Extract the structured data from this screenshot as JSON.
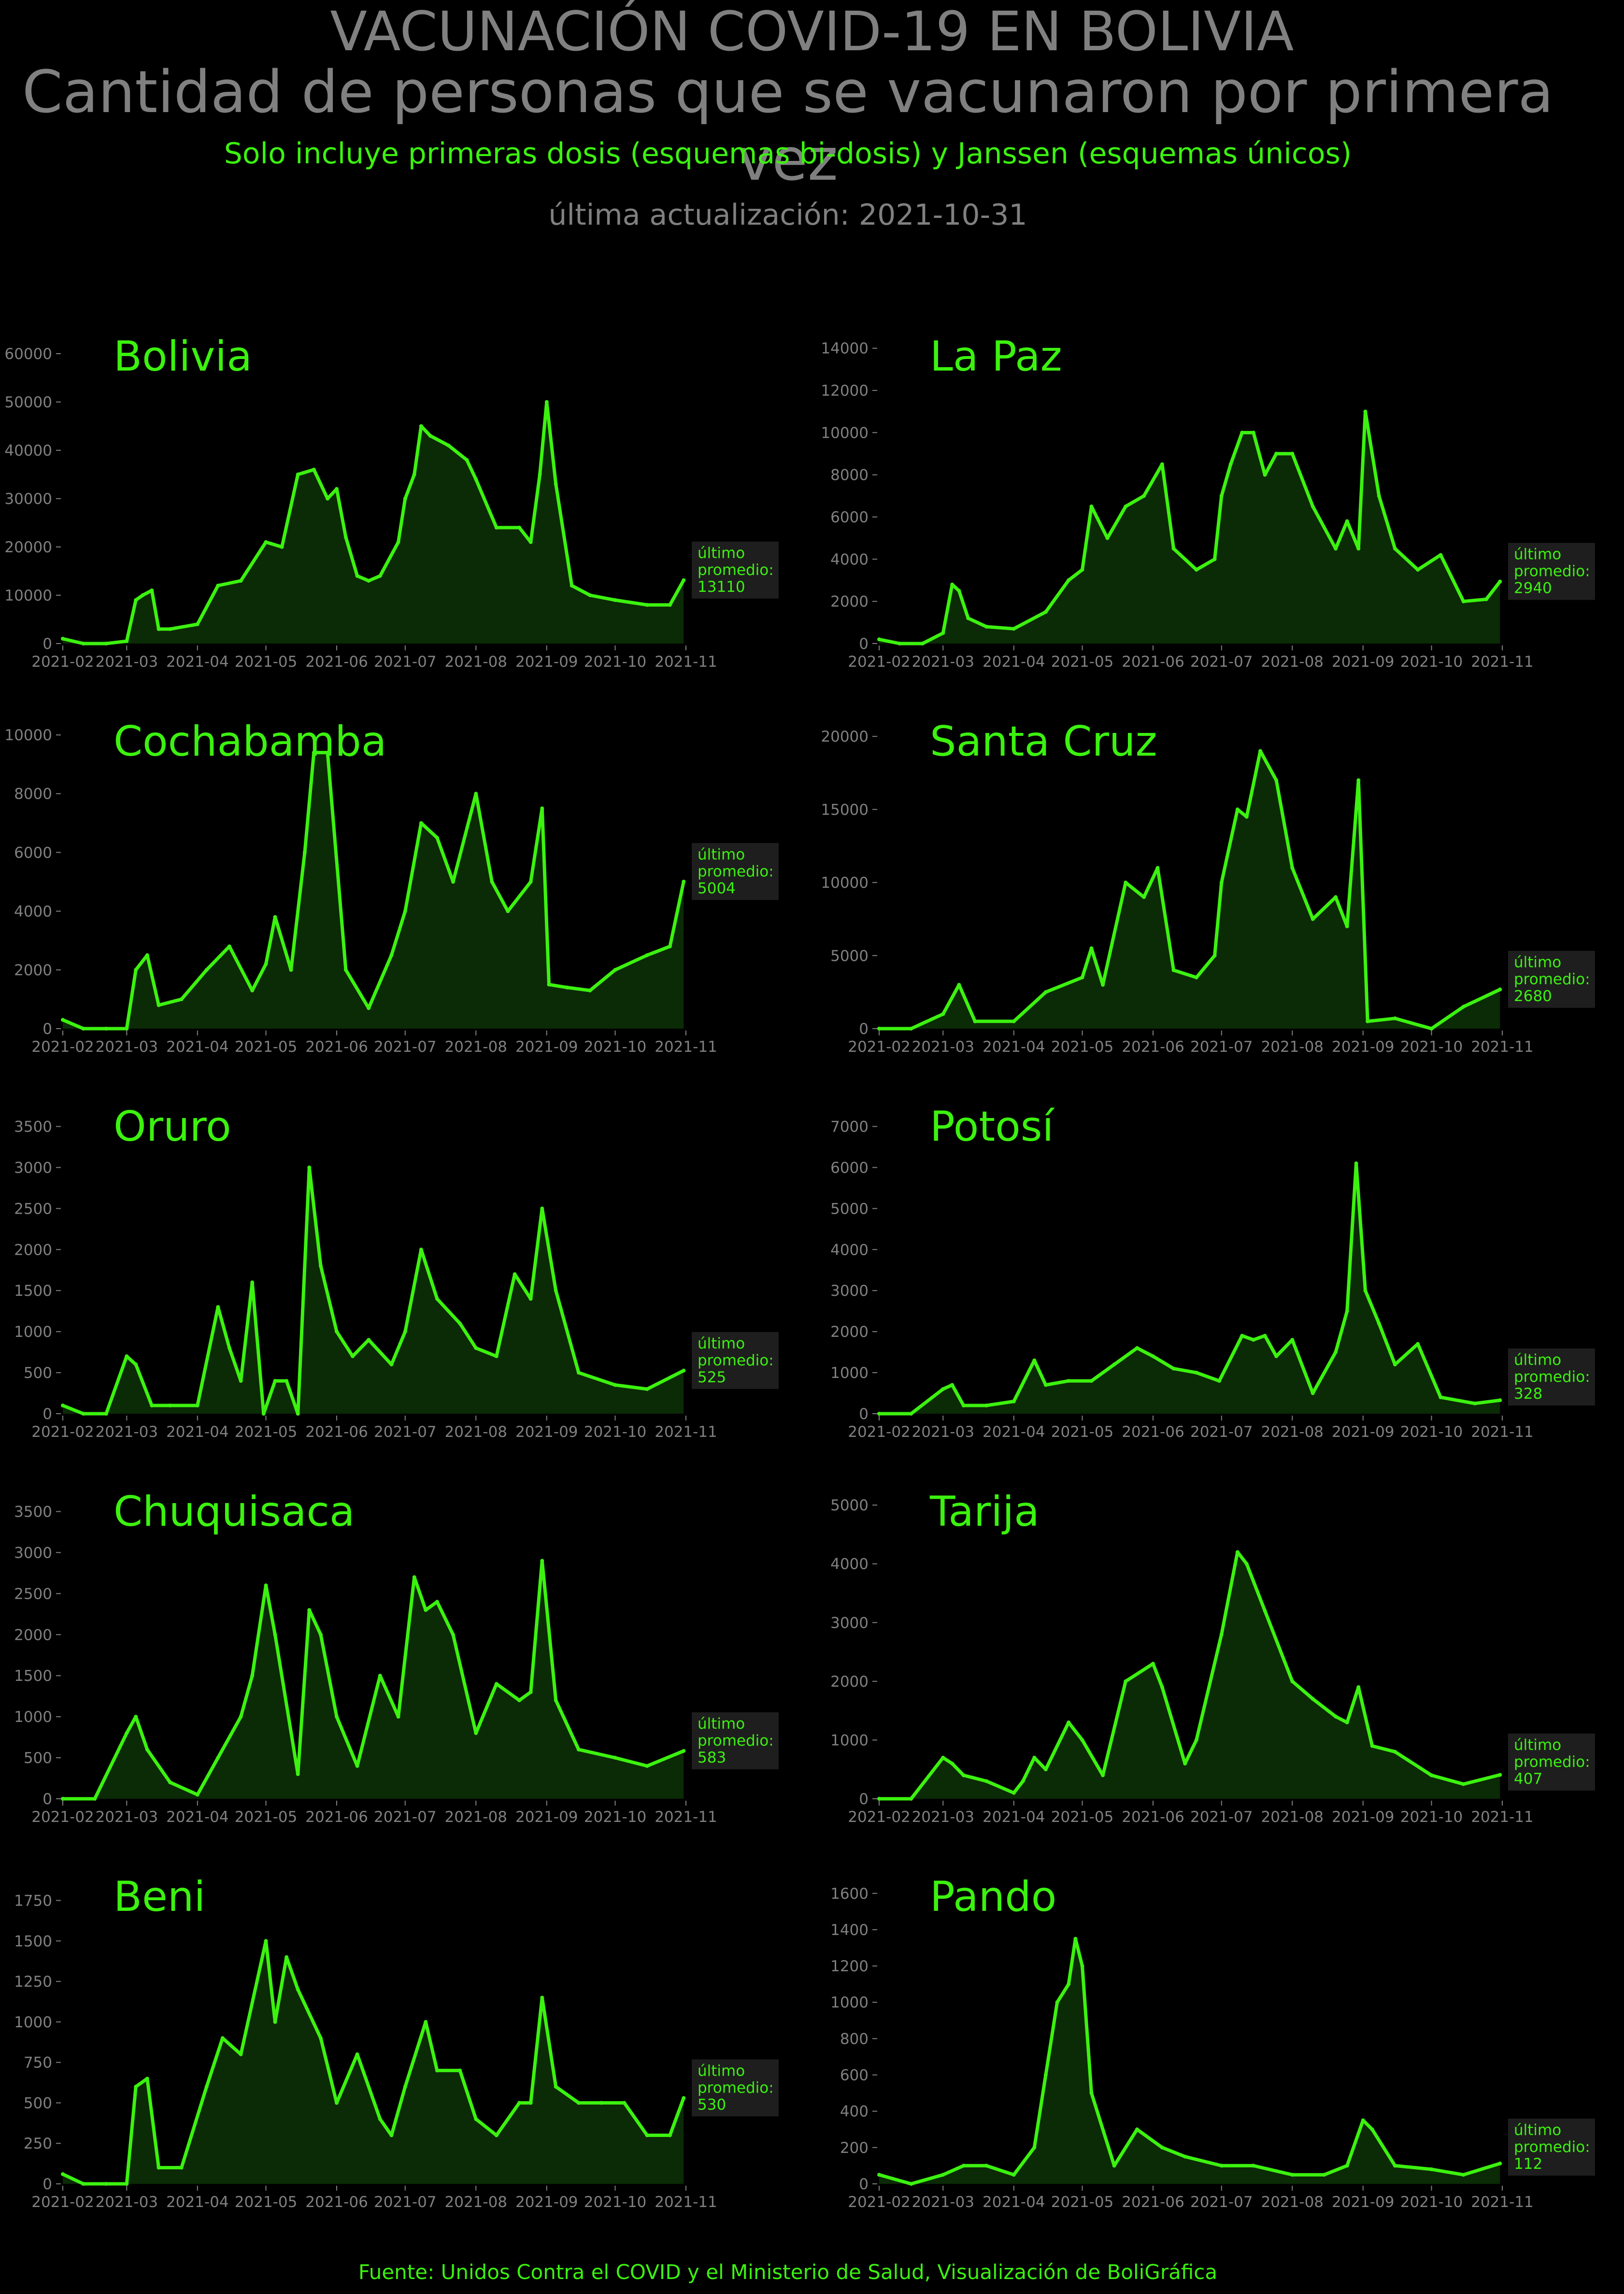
{
  "title_line1": "VACUNACIÓN COVID-19 EN BOLIVIA",
  "title_line2": "Cantidad de personas que se vacunaron por primera vez",
  "subtitle": "Solo incluye primeras dosis (esquemas bi-dosis) y Janssen (esquemas únicos)",
  "updated": "última actualización: 2021-10-31",
  "footer": "Fuente: Unidos Contra el COVID y el Ministerio de Salud, Visualización de BoliGráfica",
  "colors": {
    "background": "#000000",
    "line": "#3cf20f",
    "fill": "#0b2a06",
    "text_gray": "#808080",
    "label_bg": "#1e1e1e"
  },
  "chart_data": [
    {
      "type": "area",
      "title": "Bolivia",
      "x_ticks": [
        "2021-02",
        "2021-03",
        "2021-04",
        "2021-05",
        "2021-06",
        "2021-07",
        "2021-08",
        "2021-09",
        "2021-10",
        "2021-11"
      ],
      "y_ticks": [
        0,
        10000,
        20000,
        30000,
        40000,
        50000,
        60000
      ],
      "ylim": [
        0,
        62000
      ],
      "x": [
        "2021-02-01",
        "2021-02-10",
        "2021-02-20",
        "2021-03-01",
        "2021-03-05",
        "2021-03-08",
        "2021-03-12",
        "2021-03-15",
        "2021-03-20",
        "2021-04-01",
        "2021-04-10",
        "2021-04-20",
        "2021-05-01",
        "2021-05-08",
        "2021-05-15",
        "2021-05-22",
        "2021-05-28",
        "2021-06-01",
        "2021-06-05",
        "2021-06-10",
        "2021-06-15",
        "2021-06-20",
        "2021-06-28",
        "2021-07-01",
        "2021-07-05",
        "2021-07-08",
        "2021-07-12",
        "2021-07-20",
        "2021-07-28",
        "2021-08-01",
        "2021-08-10",
        "2021-08-20",
        "2021-08-25",
        "2021-08-29",
        "2021-09-01",
        "2021-09-05",
        "2021-09-12",
        "2021-09-20",
        "2021-10-01",
        "2021-10-15",
        "2021-10-25",
        "2021-10-31"
      ],
      "values": [
        1000,
        0,
        0,
        500,
        9000,
        10000,
        11000,
        3000,
        3000,
        4000,
        12000,
        13000,
        21000,
        20000,
        35000,
        36000,
        30000,
        32000,
        22000,
        14000,
        13000,
        14000,
        21000,
        30000,
        35000,
        45000,
        43000,
        41000,
        38000,
        34000,
        24000,
        24000,
        21000,
        35000,
        50000,
        33000,
        12000,
        10000,
        9000,
        8000,
        8000,
        13110
      ],
      "latest_label": "último\npromedio:\n13110"
    },
    {
      "type": "area",
      "title": "La Paz",
      "x_ticks": [
        "2021-02",
        "2021-03",
        "2021-04",
        "2021-05",
        "2021-06",
        "2021-07",
        "2021-08",
        "2021-09",
        "2021-10",
        "2021-11"
      ],
      "y_ticks": [
        0,
        2000,
        4000,
        6000,
        8000,
        10000,
        12000,
        14000
      ],
      "ylim": [
        0,
        14200
      ],
      "x": [
        "2021-02-01",
        "2021-02-10",
        "2021-02-20",
        "2021-03-01",
        "2021-03-05",
        "2021-03-08",
        "2021-03-12",
        "2021-03-20",
        "2021-04-01",
        "2021-04-15",
        "2021-04-25",
        "2021-05-01",
        "2021-05-05",
        "2021-05-12",
        "2021-05-20",
        "2021-05-28",
        "2021-06-05",
        "2021-06-10",
        "2021-06-20",
        "2021-06-28",
        "2021-07-01",
        "2021-07-05",
        "2021-07-10",
        "2021-07-15",
        "2021-07-20",
        "2021-07-25",
        "2021-08-01",
        "2021-08-10",
        "2021-08-20",
        "2021-08-25",
        "2021-08-30",
        "2021-09-02",
        "2021-09-08",
        "2021-09-15",
        "2021-09-25",
        "2021-10-05",
        "2021-10-15",
        "2021-10-25",
        "2021-10-31"
      ],
      "values": [
        200,
        0,
        0,
        500,
        2800,
        2500,
        1200,
        800,
        700,
        1500,
        3000,
        3500,
        6500,
        5000,
        6500,
        7000,
        8500,
        4500,
        3500,
        4000,
        7000,
        8500,
        10000,
        10000,
        8000,
        9000,
        9000,
        6500,
        4500,
        5800,
        4500,
        11000,
        7000,
        4500,
        3500,
        4200,
        2000,
        2100,
        2940
      ],
      "latest_label": "último\npromedio:\n2940"
    },
    {
      "type": "area",
      "title": "Cochabamba",
      "x_ticks": [
        "2021-02",
        "2021-03",
        "2021-04",
        "2021-05",
        "2021-06",
        "2021-07",
        "2021-08",
        "2021-09",
        "2021-10",
        "2021-11"
      ],
      "y_ticks": [
        0,
        2000,
        4000,
        6000,
        8000,
        10000
      ],
      "ylim": [
        0,
        10200
      ],
      "x": [
        "2021-02-01",
        "2021-02-10",
        "2021-02-20",
        "2021-03-01",
        "2021-03-05",
        "2021-03-10",
        "2021-03-15",
        "2021-03-25",
        "2021-04-05",
        "2021-04-15",
        "2021-04-25",
        "2021-05-01",
        "2021-05-05",
        "2021-05-12",
        "2021-05-18",
        "2021-05-22",
        "2021-05-28",
        "2021-06-05",
        "2021-06-15",
        "2021-06-25",
        "2021-07-01",
        "2021-07-08",
        "2021-07-15",
        "2021-07-22",
        "2021-08-01",
        "2021-08-08",
        "2021-08-15",
        "2021-08-25",
        "2021-08-30",
        "2021-09-02",
        "2021-09-10",
        "2021-09-20",
        "2021-10-01",
        "2021-10-15",
        "2021-10-25",
        "2021-10-31"
      ],
      "values": [
        300,
        0,
        0,
        0,
        2000,
        2500,
        800,
        1000,
        2000,
        2800,
        1300,
        2200,
        3800,
        2000,
        6000,
        9400,
        9400,
        2000,
        700,
        2500,
        4000,
        7000,
        6500,
        5000,
        8000,
        5000,
        4000,
        5000,
        7500,
        1500,
        1400,
        1300,
        2000,
        2500,
        2800,
        5004
      ],
      "latest_label": "último\npromedio:\n5004"
    },
    {
      "type": "area",
      "title": "Santa Cruz",
      "x_ticks": [
        "2021-02",
        "2021-03",
        "2021-04",
        "2021-05",
        "2021-06",
        "2021-07",
        "2021-08",
        "2021-09",
        "2021-10",
        "2021-11"
      ],
      "y_ticks": [
        0,
        5000,
        10000,
        15000,
        20000
      ],
      "ylim": [
        0,
        20500
      ],
      "x": [
        "2021-02-01",
        "2021-02-15",
        "2021-03-01",
        "2021-03-08",
        "2021-03-15",
        "2021-04-01",
        "2021-04-15",
        "2021-05-01",
        "2021-05-05",
        "2021-05-10",
        "2021-05-20",
        "2021-05-28",
        "2021-06-03",
        "2021-06-10",
        "2021-06-20",
        "2021-06-28",
        "2021-07-01",
        "2021-07-08",
        "2021-07-12",
        "2021-07-18",
        "2021-07-25",
        "2021-08-01",
        "2021-08-10",
        "2021-08-20",
        "2021-08-25",
        "2021-08-30",
        "2021-09-03",
        "2021-09-15",
        "2021-10-01",
        "2021-10-15",
        "2021-10-31"
      ],
      "values": [
        0,
        0,
        1000,
        3000,
        500,
        500,
        2500,
        3500,
        5500,
        3000,
        10000,
        9000,
        11000,
        4000,
        3500,
        5000,
        10000,
        15000,
        14500,
        19000,
        17000,
        11000,
        7500,
        9000,
        7000,
        17000,
        500,
        700,
        0,
        1500,
        2680
      ],
      "latest_label": "último\npromedio:\n2680"
    },
    {
      "type": "area",
      "title": "Oruro",
      "x_ticks": [
        "2021-02",
        "2021-03",
        "2021-04",
        "2021-05",
        "2021-06",
        "2021-07",
        "2021-08",
        "2021-09",
        "2021-10",
        "2021-11"
      ],
      "y_ticks": [
        0,
        500,
        1000,
        1500,
        2000,
        2500,
        3000,
        3500
      ],
      "ylim": [
        0,
        3650
      ],
      "x": [
        "2021-02-01",
        "2021-02-10",
        "2021-02-20",
        "2021-03-01",
        "2021-03-05",
        "2021-03-12",
        "2021-03-20",
        "2021-04-01",
        "2021-04-10",
        "2021-04-15",
        "2021-04-20",
        "2021-04-25",
        "2021-04-30",
        "2021-05-05",
        "2021-05-10",
        "2021-05-15",
        "2021-05-20",
        "2021-05-25",
        "2021-06-01",
        "2021-06-08",
        "2021-06-15",
        "2021-06-25",
        "2021-07-01",
        "2021-07-08",
        "2021-07-15",
        "2021-07-25",
        "2021-08-01",
        "2021-08-10",
        "2021-08-18",
        "2021-08-25",
        "2021-08-30",
        "2021-09-05",
        "2021-09-15",
        "2021-10-01",
        "2021-10-15",
        "2021-10-31"
      ],
      "values": [
        100,
        0,
        0,
        700,
        600,
        100,
        100,
        100,
        1300,
        800,
        400,
        1600,
        0,
        400,
        400,
        0,
        3000,
        1800,
        1000,
        700,
        900,
        600,
        1000,
        2000,
        1400,
        1100,
        800,
        700,
        1700,
        1400,
        2500,
        1500,
        500,
        350,
        300,
        525
      ],
      "latest_label": "último\npromedio:\n525"
    },
    {
      "type": "area",
      "title": "Potosí",
      "x_ticks": [
        "2021-02",
        "2021-03",
        "2021-04",
        "2021-05",
        "2021-06",
        "2021-07",
        "2021-08",
        "2021-09",
        "2021-10",
        "2021-11"
      ],
      "y_ticks": [
        0,
        1000,
        2000,
        3000,
        4000,
        5000,
        6000,
        7000
      ],
      "ylim": [
        0,
        7300
      ],
      "x": [
        "2021-02-01",
        "2021-02-15",
        "2021-03-01",
        "2021-03-05",
        "2021-03-10",
        "2021-03-20",
        "2021-04-01",
        "2021-04-10",
        "2021-04-15",
        "2021-04-25",
        "2021-05-05",
        "2021-05-15",
        "2021-05-25",
        "2021-06-01",
        "2021-06-10",
        "2021-06-20",
        "2021-06-30",
        "2021-07-10",
        "2021-07-15",
        "2021-07-20",
        "2021-07-25",
        "2021-08-01",
        "2021-08-10",
        "2021-08-20",
        "2021-08-25",
        "2021-08-29",
        "2021-09-02",
        "2021-09-08",
        "2021-09-15",
        "2021-09-25",
        "2021-10-05",
        "2021-10-20",
        "2021-10-31"
      ],
      "values": [
        0,
        0,
        600,
        700,
        200,
        200,
        300,
        1300,
        700,
        800,
        800,
        1200,
        1600,
        1400,
        1100,
        1000,
        800,
        1900,
        1800,
        1900,
        1400,
        1800,
        500,
        1500,
        2500,
        6100,
        3000,
        2200,
        1200,
        1700,
        400,
        250,
        328
      ],
      "latest_label": "último\npromedio:\n328"
    },
    {
      "type": "area",
      "title": "Chuquisaca",
      "x_ticks": [
        "2021-02",
        "2021-03",
        "2021-04",
        "2021-05",
        "2021-06",
        "2021-07",
        "2021-08",
        "2021-09",
        "2021-10",
        "2021-11"
      ],
      "y_ticks": [
        0,
        500,
        1000,
        1500,
        2000,
        2500,
        3000,
        3500
      ],
      "ylim": [
        0,
        3650
      ],
      "x": [
        "2021-02-01",
        "2021-02-15",
        "2021-03-01",
        "2021-03-05",
        "2021-03-10",
        "2021-03-20",
        "2021-04-01",
        "2021-04-10",
        "2021-04-20",
        "2021-04-25",
        "2021-05-01",
        "2021-05-05",
        "2021-05-15",
        "2021-05-20",
        "2021-05-25",
        "2021-06-01",
        "2021-06-10",
        "2021-06-20",
        "2021-06-28",
        "2021-07-05",
        "2021-07-10",
        "2021-07-15",
        "2021-07-22",
        "2021-08-01",
        "2021-08-10",
        "2021-08-20",
        "2021-08-25",
        "2021-08-30",
        "2021-09-05",
        "2021-09-15",
        "2021-10-01",
        "2021-10-15",
        "2021-10-31"
      ],
      "values": [
        0,
        0,
        800,
        1000,
        600,
        200,
        50,
        500,
        1000,
        1500,
        2600,
        2000,
        300,
        2300,
        2000,
        1000,
        400,
        1500,
        1000,
        2700,
        2300,
        2400,
        2000,
        800,
        1400,
        1200,
        1300,
        2900,
        1200,
        600,
        500,
        400,
        583
      ],
      "latest_label": "último\npromedio:\n583"
    },
    {
      "type": "area",
      "title": "Tarija",
      "x_ticks": [
        "2021-02",
        "2021-03",
        "2021-04",
        "2021-05",
        "2021-06",
        "2021-07",
        "2021-08",
        "2021-09",
        "2021-10",
        "2021-11"
      ],
      "y_ticks": [
        0,
        1000,
        2000,
        3000,
        4000,
        5000
      ],
      "ylim": [
        0,
        5100
      ],
      "x": [
        "2021-02-01",
        "2021-02-15",
        "2021-03-01",
        "2021-03-05",
        "2021-03-10",
        "2021-03-20",
        "2021-04-01",
        "2021-04-05",
        "2021-04-10",
        "2021-04-15",
        "2021-04-25",
        "2021-05-01",
        "2021-05-10",
        "2021-05-20",
        "2021-06-01",
        "2021-06-05",
        "2021-06-15",
        "2021-06-20",
        "2021-07-01",
        "2021-07-08",
        "2021-07-12",
        "2021-07-20",
        "2021-08-01",
        "2021-08-10",
        "2021-08-20",
        "2021-08-25",
        "2021-08-30",
        "2021-09-05",
        "2021-09-15",
        "2021-10-01",
        "2021-10-15",
        "2021-10-31"
      ],
      "values": [
        0,
        0,
        700,
        600,
        400,
        300,
        100,
        300,
        700,
        500,
        1300,
        1000,
        400,
        2000,
        2300,
        1900,
        600,
        1000,
        2800,
        4200,
        4000,
        3200,
        2000,
        1700,
        1400,
        1300,
        1900,
        900,
        800,
        400,
        250,
        407
      ],
      "latest_label": "último\npromedio:\n407"
    },
    {
      "type": "area",
      "title": "Beni",
      "x_ticks": [
        "2021-02",
        "2021-03",
        "2021-04",
        "2021-05",
        "2021-06",
        "2021-07",
        "2021-08",
        "2021-09",
        "2021-10",
        "2021-11"
      ],
      "y_ticks": [
        0,
        250,
        500,
        750,
        1000,
        1250,
        1500,
        1750
      ],
      "ylim": [
        0,
        1850
      ],
      "x": [
        "2021-02-01",
        "2021-02-10",
        "2021-02-20",
        "2021-03-01",
        "2021-03-05",
        "2021-03-10",
        "2021-03-15",
        "2021-03-25",
        "2021-04-05",
        "2021-04-12",
        "2021-04-20",
        "2021-05-01",
        "2021-05-05",
        "2021-05-10",
        "2021-05-15",
        "2021-05-25",
        "2021-06-01",
        "2021-06-10",
        "2021-06-20",
        "2021-06-25",
        "2021-07-01",
        "2021-07-10",
        "2021-07-15",
        "2021-07-25",
        "2021-08-01",
        "2021-08-10",
        "2021-08-20",
        "2021-08-25",
        "2021-08-30",
        "2021-09-05",
        "2021-09-15",
        "2021-09-25",
        "2021-10-05",
        "2021-10-15",
        "2021-10-25",
        "2021-10-31"
      ],
      "values": [
        60,
        0,
        0,
        0,
        600,
        650,
        100,
        100,
        600,
        900,
        800,
        1500,
        1000,
        1400,
        1200,
        900,
        500,
        800,
        400,
        300,
        600,
        1000,
        700,
        700,
        400,
        300,
        500,
        500,
        1150,
        600,
        500,
        500,
        500,
        300,
        300,
        530
      ],
      "latest_label": "último\npromedio:\n530"
    },
    {
      "type": "area",
      "title": "Pando",
      "x_ticks": [
        "2021-02",
        "2021-03",
        "2021-04",
        "2021-05",
        "2021-06",
        "2021-07",
        "2021-08",
        "2021-09",
        "2021-10",
        "2021-11"
      ],
      "y_ticks": [
        0,
        200,
        400,
        600,
        800,
        1000,
        1200,
        1400,
        1600
      ],
      "ylim": [
        0,
        1650
      ],
      "x": [
        "2021-02-01",
        "2021-02-15",
        "2021-03-01",
        "2021-03-10",
        "2021-03-20",
        "2021-04-01",
        "2021-04-10",
        "2021-04-15",
        "2021-04-20",
        "2021-04-25",
        "2021-04-28",
        "2021-05-01",
        "2021-05-05",
        "2021-05-15",
        "2021-05-25",
        "2021-06-05",
        "2021-06-15",
        "2021-07-01",
        "2021-07-15",
        "2021-08-01",
        "2021-08-15",
        "2021-08-25",
        "2021-09-01",
        "2021-09-05",
        "2021-09-15",
        "2021-10-01",
        "2021-10-15",
        "2021-10-31"
      ],
      "values": [
        50,
        0,
        50,
        100,
        100,
        50,
        200,
        600,
        1000,
        1100,
        1350,
        1200,
        500,
        100,
        300,
        200,
        150,
        100,
        100,
        50,
        50,
        100,
        350,
        300,
        100,
        80,
        50,
        112
      ],
      "latest_label": "último\npromedio:\n112"
    }
  ]
}
